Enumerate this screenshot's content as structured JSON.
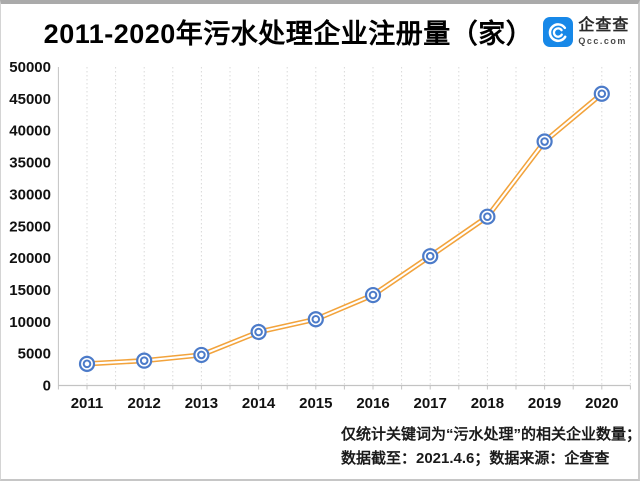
{
  "header": {
    "title": "2011-2020年污水处理企业注册量（家）",
    "logo": {
      "name": "企查查",
      "domain": "Qcc.com",
      "brand_color": "#1788e8"
    }
  },
  "chart_data": {
    "type": "line",
    "title": "2011-2020年污水处理企业注册量（家）",
    "categories": [
      "2011",
      "2012",
      "2013",
      "2014",
      "2015",
      "2016",
      "2017",
      "2018",
      "2019",
      "2020"
    ],
    "values": [
      3400,
      3900,
      4800,
      8400,
      10400,
      14200,
      20300,
      26500,
      38300,
      45800
    ],
    "xlabel": "",
    "ylabel": "",
    "ylim": [
      0,
      50000
    ],
    "ytick_step": 5000,
    "yticks": [
      "0",
      "5000",
      "10000",
      "15000",
      "20000",
      "25000",
      "30000",
      "35000",
      "40000",
      "45000",
      "50000"
    ],
    "grid": "vertical-dotted-minor",
    "legend": "none",
    "line_color": "#F2A33C",
    "line_style": "double-stroke",
    "marker": "double-circle",
    "marker_color": "#4C7BC9"
  },
  "footnote": {
    "line1": "仅统计关键词为“污水处理”的相关企业数量；",
    "line2": "数据截至：2021.4.6；数据来源：企查查"
  },
  "colors": {
    "grid": "#d9d9d9",
    "axis": "#c3c3c3",
    "text": "#111111"
  }
}
